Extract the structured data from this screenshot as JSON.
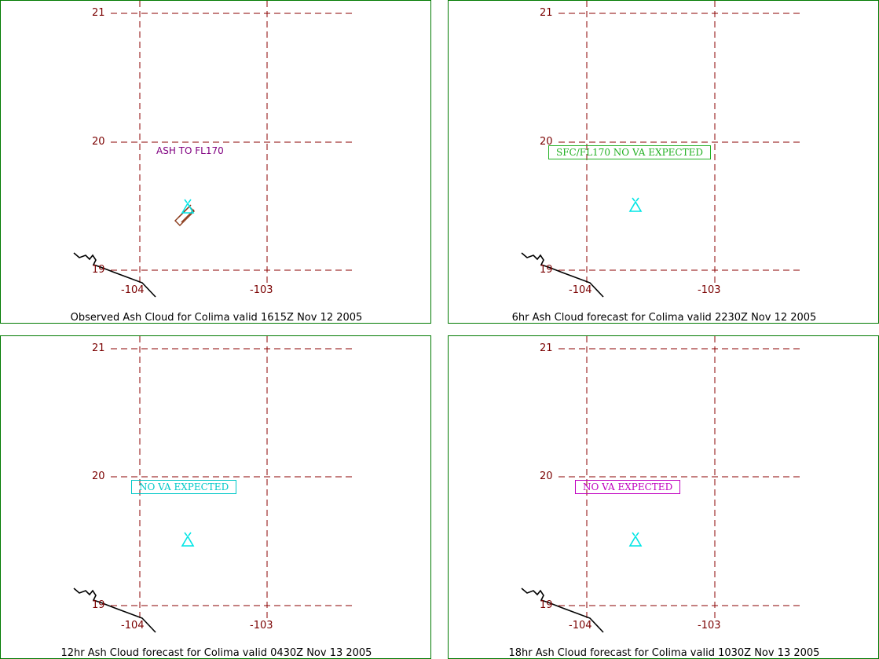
{
  "colors": {
    "frame": "#007a00",
    "grid": "#8b0000",
    "tick_text": "#7a0000",
    "coast": "#000000",
    "volcano": "#00e5e5",
    "ash_polygon": "#8b3a1a"
  },
  "axes": {
    "lat_labels": [
      "21",
      "20",
      "19"
    ],
    "lon_labels": [
      "-104",
      "-103"
    ]
  },
  "panels": [
    {
      "caption": "Observed Ash Cloud for Colima valid 1615Z Nov 12 2005",
      "annotation": {
        "text": "ASH TO FL170",
        "style": "plain",
        "color": "#800080"
      },
      "has_ash_polygon": true
    },
    {
      "caption": "6hr Ash Cloud forecast for Colima valid 2230Z Nov 12 2005",
      "annotation": {
        "text": "SFC/FL170 NO VA EXPECTED",
        "style": "boxed",
        "color": "#22b022"
      },
      "has_ash_polygon": false
    },
    {
      "caption": "12hr Ash Cloud forecast for Colima valid 0430Z Nov 13 2005",
      "annotation": {
        "text": "NO VA EXPECTED",
        "style": "boxed",
        "color": "#00c8c8"
      },
      "has_ash_polygon": false
    },
    {
      "caption": "18hr Ash Cloud forecast for Colima valid 1030Z Nov 13 2005",
      "annotation": {
        "text": "NO VA EXPECTED",
        "style": "boxed",
        "color": "#c000c0"
      },
      "has_ash_polygon": false
    }
  ]
}
